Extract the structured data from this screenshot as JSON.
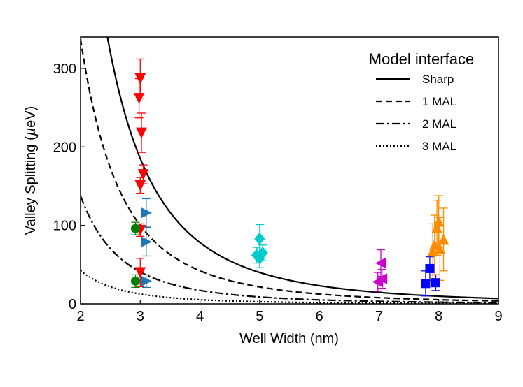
{
  "chart_data": {
    "type": "scatter",
    "title": "",
    "xlabel": "Well Width (nm)",
    "ylabel_prefix": "Valley Splitting (",
    "ylabel_unit": "µ",
    "ylabel_suffix": "eV)",
    "xlim": [
      2,
      9
    ],
    "ylim": [
      0,
      340
    ],
    "xticks": [
      2,
      3,
      4,
      5,
      6,
      7,
      8,
      9
    ],
    "yticks": [
      0,
      100,
      200,
      300
    ],
    "grid": false,
    "legend": {
      "title": "Model interface",
      "placement": "top-right",
      "entries": [
        {
          "label": "Sharp",
          "dash": "solid"
        },
        {
          "label": "1 MAL",
          "dash": "dashed"
        },
        {
          "label": "2 MAL",
          "dash": "dashdot"
        },
        {
          "label": "3 MAL",
          "dash": "dotted"
        }
      ]
    },
    "model_curves": [
      {
        "name": "Sharp",
        "dash": "solid",
        "a": 5000
      },
      {
        "name": "1 MAL",
        "dash": "dashed",
        "a": 2700
      },
      {
        "name": "2 MAL",
        "dash": "dashdot",
        "a": 1100
      },
      {
        "name": "3 MAL",
        "dash": "dotted",
        "a": 340
      }
    ],
    "series": [
      {
        "name": "red",
        "color": "#ff0000",
        "marker": "triangle-down",
        "points": [
          {
            "x": 3.0,
            "y": 287,
            "err": 25
          },
          {
            "x": 2.98,
            "y": 262,
            "err": 25
          },
          {
            "x": 3.02,
            "y": 218,
            "err": 25
          },
          {
            "x": 3.05,
            "y": 165,
            "err": 12
          },
          {
            "x": 3.0,
            "y": 151,
            "err": 10
          },
          {
            "x": 3.0,
            "y": 94,
            "err": 8
          },
          {
            "x": 3.0,
            "y": 40,
            "err": 18
          }
        ]
      },
      {
        "name": "green",
        "color": "#008000",
        "marker": "circle",
        "points": [
          {
            "x": 2.92,
            "y": 96,
            "err": 8
          },
          {
            "x": 2.92,
            "y": 29,
            "err": 8
          }
        ]
      },
      {
        "name": "blue",
        "color": "#1f77b4",
        "marker": "triangle-right",
        "points": [
          {
            "x": 3.1,
            "y": 116,
            "err": 18
          },
          {
            "x": 3.1,
            "y": 79,
            "err": 18
          },
          {
            "x": 3.1,
            "y": 29,
            "err": 8
          }
        ]
      },
      {
        "name": "cyan",
        "color": "#00cccc",
        "marker": "diamond",
        "points": [
          {
            "x": 5.0,
            "y": 83,
            "err": 18
          },
          {
            "x": 5.05,
            "y": 65,
            "err": 10
          },
          {
            "x": 4.95,
            "y": 62,
            "err": 10
          },
          {
            "x": 5.0,
            "y": 58,
            "err": 12
          }
        ]
      },
      {
        "name": "magenta",
        "color": "#cc00cc",
        "marker": "triangle-left",
        "points": [
          {
            "x": 7.03,
            "y": 52,
            "err": 17
          },
          {
            "x": 7.05,
            "y": 32,
            "err": 12
          },
          {
            "x": 6.98,
            "y": 28,
            "err": 12
          }
        ]
      },
      {
        "name": "darkblue",
        "color": "#0000ff",
        "marker": "square",
        "points": [
          {
            "x": 7.78,
            "y": 26,
            "err": 16
          },
          {
            "x": 7.85,
            "y": 45,
            "err": 15
          },
          {
            "x": 7.95,
            "y": 27,
            "err": 10
          }
        ]
      },
      {
        "name": "orange",
        "color": "#ff8c00",
        "marker": "triangle-up",
        "points": [
          {
            "x": 8.0,
            "y": 105,
            "err": 33
          },
          {
            "x": 7.97,
            "y": 97,
            "err": 35
          },
          {
            "x": 8.08,
            "y": 82,
            "err": 40
          },
          {
            "x": 7.93,
            "y": 75,
            "err": 38
          },
          {
            "x": 7.9,
            "y": 67,
            "err": 35
          },
          {
            "x": 8.02,
            "y": 70,
            "err": 40
          }
        ]
      }
    ]
  }
}
